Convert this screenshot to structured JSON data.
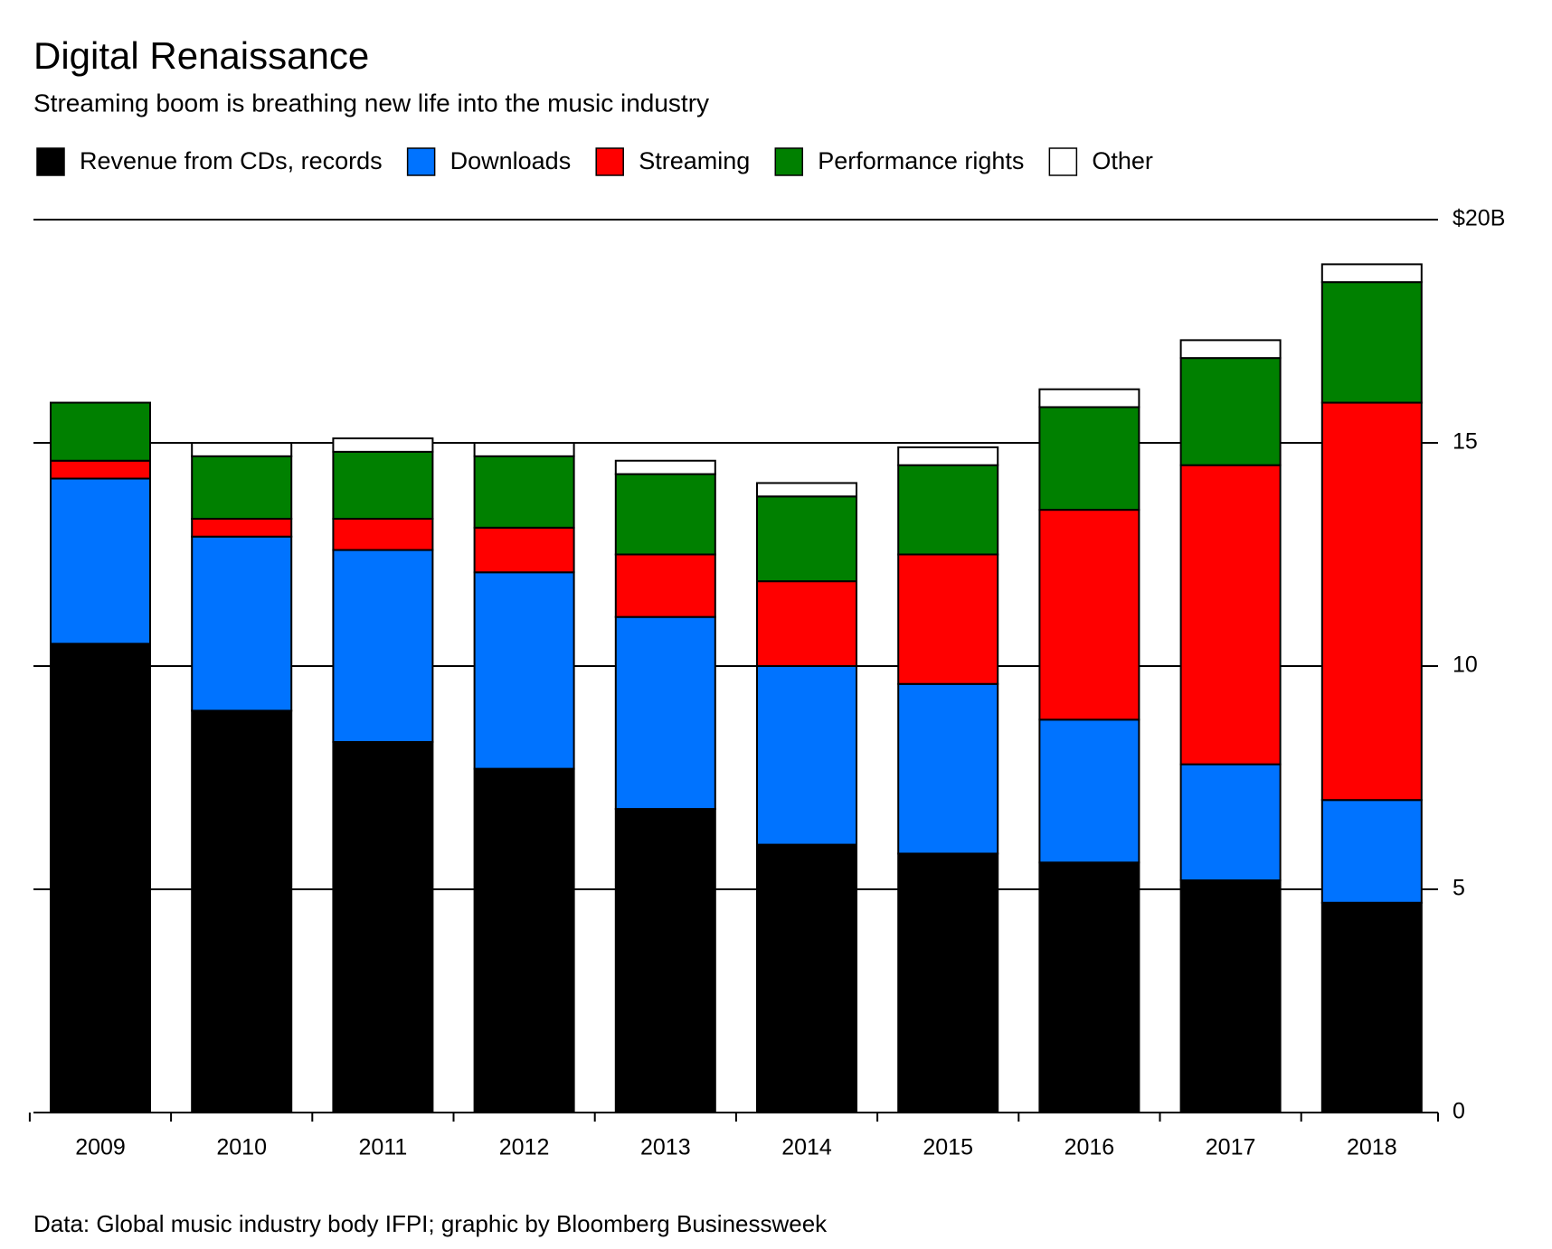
{
  "chart_data": {
    "type": "stacked_bar",
    "title": "Digital Renaissance",
    "subtitle": "Streaming boom is breathing new life into the music industry",
    "source": "Data: Global music industry body IFPI; graphic by Bloomberg Businessweek",
    "categories": [
      "2009",
      "2010",
      "2011",
      "2012",
      "2013",
      "2014",
      "2015",
      "2016",
      "2017",
      "2018"
    ],
    "series": [
      {
        "name": "Revenue from CDs, records",
        "color": "#000000",
        "values": [
          10.5,
          9.0,
          8.3,
          7.7,
          6.8,
          6.0,
          5.8,
          5.6,
          5.2,
          4.7
        ]
      },
      {
        "name": "Downloads",
        "color": "#0073ff",
        "values": [
          3.7,
          3.9,
          4.3,
          4.4,
          4.3,
          4.0,
          3.8,
          3.2,
          2.6,
          2.3
        ]
      },
      {
        "name": "Streaming",
        "color": "#ff0000",
        "values": [
          0.4,
          0.4,
          0.7,
          1.0,
          1.4,
          1.9,
          2.9,
          4.7,
          6.7,
          8.9
        ]
      },
      {
        "name": "Performance rights",
        "color": "#008000",
        "values": [
          1.3,
          1.4,
          1.5,
          1.6,
          1.8,
          1.9,
          2.0,
          2.3,
          2.4,
          2.7
        ]
      },
      {
        "name": "Other",
        "color": "#ffffff",
        "values": [
          0,
          0.3,
          0.3,
          0.3,
          0.3,
          0.3,
          0.4,
          0.4,
          0.4,
          0.4
        ]
      }
    ],
    "ylim": [
      0,
      20
    ],
    "yticks": [
      0,
      5,
      10,
      15,
      {
        "value": 20,
        "label": "$20B"
      }
    ],
    "grid": true
  }
}
